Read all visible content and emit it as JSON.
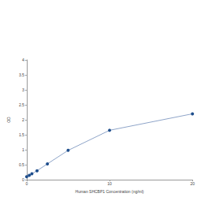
{
  "chart_data": {
    "type": "line",
    "x_label": "Human SHCBP1 Concentration (ng/ml)",
    "y_label": "OD",
    "x": [
      0,
      0.3125,
      0.625,
      1.25,
      2.5,
      5,
      10,
      20
    ],
    "values": [
      0.1,
      0.15,
      0.2,
      0.3,
      0.53,
      0.98,
      1.65,
      2.2
    ],
    "color": "#1f4e8c",
    "marker": "circle",
    "xlim": [
      0,
      20
    ],
    "xticks": [
      0,
      10,
      20
    ],
    "ylim": [
      0,
      4
    ],
    "yticks": [
      0,
      0.5,
      1,
      1.5,
      2,
      2.5,
      3,
      3.5,
      4
    ],
    "grid": false
  }
}
